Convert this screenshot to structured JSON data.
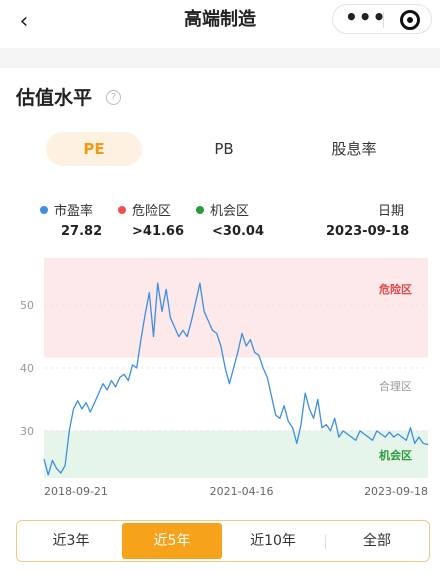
{
  "header": {
    "back_icon": "chevron-left-icon",
    "title": "高端制造",
    "more_icon": "more-dots-icon",
    "close_icon": "target-close-icon"
  },
  "section": {
    "title": "估值水平",
    "help_icon": "question-circle-icon"
  },
  "tabs": [
    {
      "label": "PE",
      "active": true
    },
    {
      "label": "PB",
      "active": false
    },
    {
      "label": "股息率",
      "active": false
    }
  ],
  "legend": {
    "pe": {
      "label": "市盈率",
      "value": "27.82",
      "color": "#3d8fe0"
    },
    "danger": {
      "label": "危险区",
      "value": ">41.66",
      "color": "#f05050"
    },
    "chance": {
      "label": "机会区",
      "value": "<30.04",
      "color": "#2a9a3a"
    },
    "date": {
      "label": "日期",
      "value": "2023-09-18"
    }
  },
  "chart_data": {
    "type": "line",
    "ylim": [
      22.5,
      57.5
    ],
    "yticks": [
      "50",
      "40",
      "30"
    ],
    "xticks": [
      "2018-09-21",
      "2021-04-16",
      "2023-09-18"
    ],
    "xlim": [
      "2018-09-21",
      "2023-09-18"
    ],
    "zones": {
      "danger": {
        "label": "危险区",
        "from": 41.66,
        "color": "#fde9e9",
        "text_color": "#e04848"
      },
      "fair": {
        "label": "合理区",
        "color": "#999999"
      },
      "chance": {
        "label": "机会区",
        "to": 30.04,
        "color": "#e6f5ea",
        "text_color": "#2a9a3a"
      }
    },
    "series": [
      {
        "color": "#3d8fe0",
        "x": [
          "2018-09-21",
          "2018-10-11",
          "2018-10-31",
          "2018-11-20",
          "2018-12-10",
          "2018-12-30",
          "2019-01-19",
          "2019-02-08",
          "2019-02-28",
          "2019-03-20",
          "2019-04-09",
          "2019-04-29",
          "2019-05-19",
          "2019-06-08",
          "2019-06-28",
          "2019-07-18",
          "2019-08-07",
          "2019-08-27",
          "2019-09-16",
          "2019-10-06",
          "2019-10-26",
          "2019-11-15",
          "2019-12-05",
          "2019-12-25",
          "2020-01-14",
          "2020-02-03",
          "2020-02-23",
          "2020-03-14",
          "2020-04-03",
          "2020-04-23",
          "2020-05-13",
          "2020-06-02",
          "2020-06-22",
          "2020-07-12",
          "2020-08-01",
          "2020-08-21",
          "2020-09-10",
          "2020-09-30",
          "2020-10-20",
          "2020-11-09",
          "2020-11-29",
          "2020-12-19",
          "2021-01-08",
          "2021-01-28",
          "2021-02-17",
          "2021-03-09",
          "2021-03-29",
          "2021-04-18",
          "2021-05-08",
          "2021-05-28",
          "2021-06-17",
          "2021-07-07",
          "2021-07-27",
          "2021-08-16",
          "2021-09-05",
          "2021-09-25",
          "2021-10-15",
          "2021-11-04",
          "2021-11-24",
          "2021-12-14",
          "2022-01-03",
          "2022-01-23",
          "2022-02-12",
          "2022-03-04",
          "2022-03-24",
          "2022-04-13",
          "2022-05-03",
          "2022-05-23",
          "2022-06-12",
          "2022-07-02",
          "2022-07-22",
          "2022-08-11",
          "2022-08-31",
          "2022-09-20",
          "2022-10-10",
          "2022-10-30",
          "2022-11-19",
          "2022-12-09",
          "2022-12-29",
          "2023-01-18",
          "2023-02-07",
          "2023-02-27",
          "2023-03-19",
          "2023-04-08",
          "2023-04-28",
          "2023-05-18",
          "2023-06-07",
          "2023-06-27",
          "2023-07-17",
          "2023-08-06",
          "2023-08-26",
          "2023-09-18"
        ],
        "y": [
          25.5,
          23.0,
          25.3,
          24.0,
          23.3,
          24.5,
          30.0,
          33.5,
          34.8,
          33.5,
          34.5,
          33.0,
          34.5,
          36.0,
          37.5,
          36.5,
          38.0,
          37.0,
          38.5,
          39.0,
          38.0,
          40.5,
          40.0,
          44.5,
          48.5,
          52.0,
          45.0,
          53.5,
          49.0,
          52.5,
          48.0,
          46.5,
          45.0,
          46.0,
          45.0,
          47.5,
          50.5,
          53.5,
          49.0,
          47.5,
          46.0,
          45.5,
          43.5,
          40.0,
          37.5,
          40.0,
          42.5,
          45.5,
          43.5,
          44.5,
          42.5,
          42.0,
          40.0,
          38.5,
          35.5,
          32.5,
          32.0,
          34.0,
          31.5,
          30.5,
          28.0,
          31.0,
          36.0,
          33.5,
          32.0,
          35.0,
          30.5,
          31.0,
          30.0,
          32.0,
          29.0,
          30.0,
          29.5,
          29.0,
          28.5,
          30.0,
          29.5,
          29.0,
          28.5,
          30.0,
          29.5,
          29.0,
          29.8,
          29.0,
          29.5,
          29.0,
          28.5,
          30.5,
          28.0,
          29.0,
          28.0,
          27.82
        ]
      }
    ]
  },
  "ranges": [
    {
      "label": "近3年",
      "active": false
    },
    {
      "label": "近5年",
      "active": true
    },
    {
      "label": "近10年",
      "active": false
    },
    {
      "label": "全部",
      "active": false
    }
  ]
}
